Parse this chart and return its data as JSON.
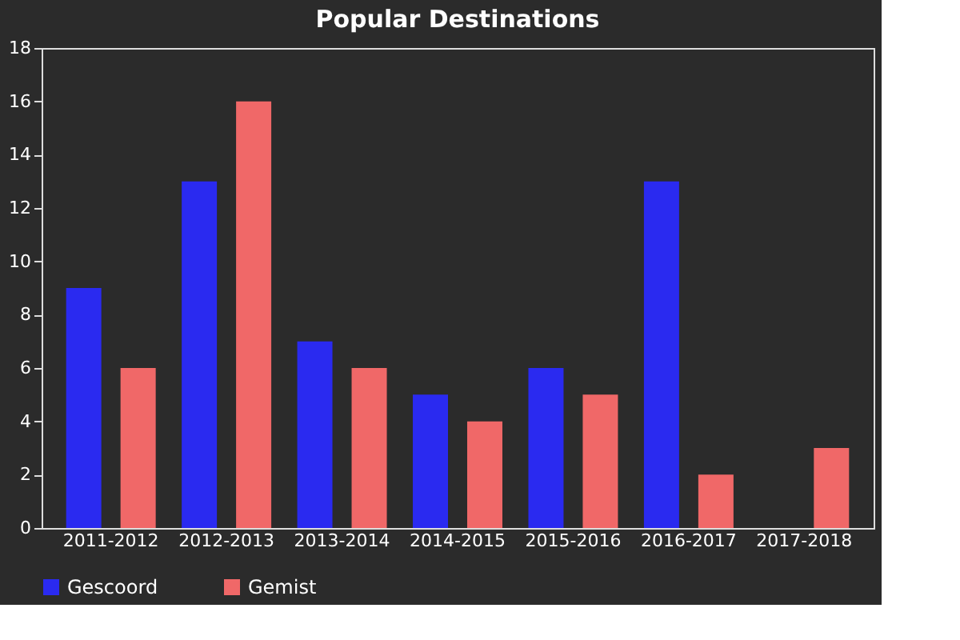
{
  "chart_data": {
    "type": "bar",
    "title": "Popular Destinations",
    "categories": [
      "2011-2012",
      "2012-2013",
      "2013-2014",
      "2014-2015",
      "2015-2016",
      "2016-2017",
      "2017-2018"
    ],
    "series": [
      {
        "name": "Gescoord",
        "color": "#2a2af0",
        "values": [
          9,
          13,
          7,
          5,
          6,
          13,
          0
        ]
      },
      {
        "name": "Gemist",
        "color": "#f06868",
        "values": [
          6,
          16,
          6,
          4,
          5,
          2,
          3
        ]
      }
    ],
    "ylim": [
      0,
      18
    ],
    "yticks": [
      0,
      2,
      4,
      6,
      8,
      10,
      12,
      14,
      16,
      18
    ],
    "grid": false,
    "legend": "bottom left"
  }
}
